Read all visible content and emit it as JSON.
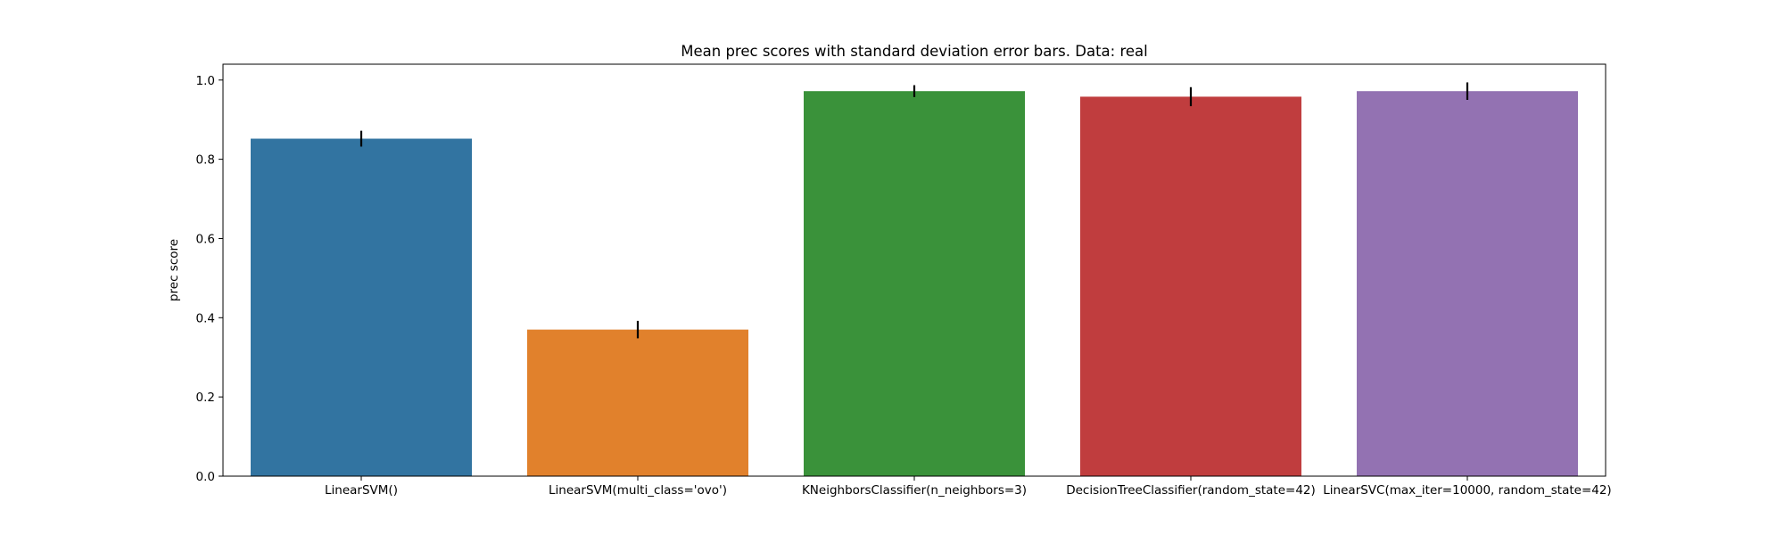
{
  "chart_data": {
    "type": "bar",
    "title": "Mean prec scores with standard deviation error bars. Data: real",
    "xlabel": "",
    "ylabel": "prec score",
    "ylim": [
      0,
      1.04
    ],
    "yticks": [
      "0.0",
      "0.2",
      "0.4",
      "0.6",
      "0.8",
      "1.0"
    ],
    "categories": [
      "LinearSVM()",
      "LinearSVM(multi_class='ovo')",
      "KNeighborsClassifier(n_neighbors=3)",
      "DecisionTreeClassifier(random_state=42)",
      "LinearSVC(max_iter=10000, random_state=42)"
    ],
    "values": [
      0.852,
      0.37,
      0.972,
      0.958,
      0.972
    ],
    "errors": [
      0.02,
      0.022,
      0.015,
      0.024,
      0.022
    ],
    "colors": [
      "#3274a1",
      "#e1812c",
      "#3a923a",
      "#c03d3e",
      "#9372b2"
    ],
    "grid": false,
    "legend": "none"
  }
}
